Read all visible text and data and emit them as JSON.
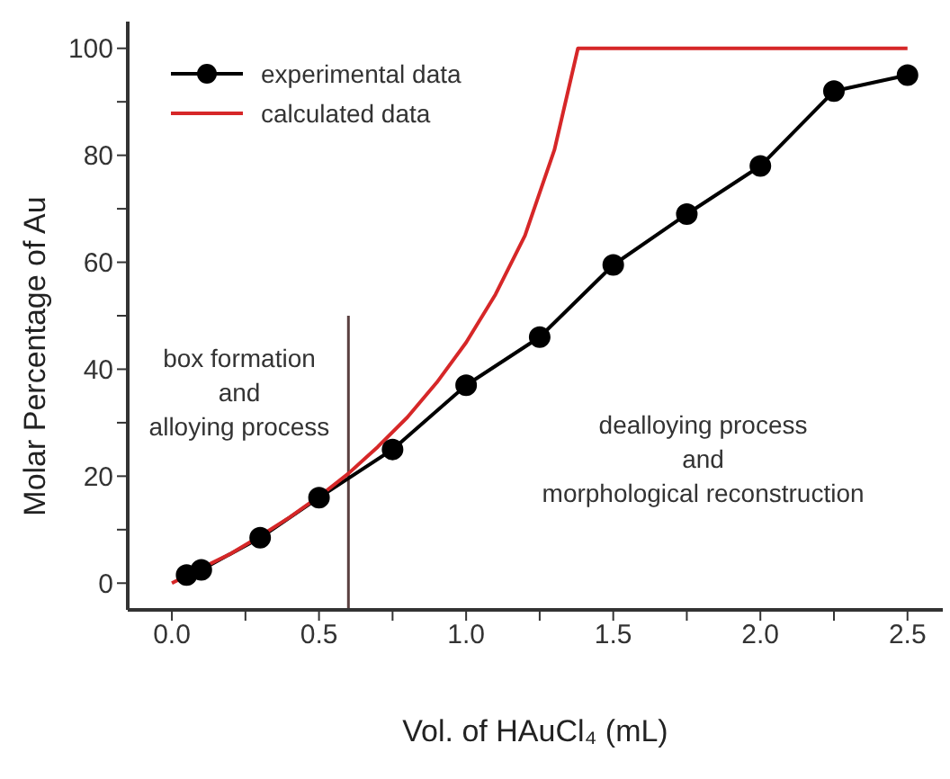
{
  "chart_data": {
    "type": "line",
    "xlabel": "Vol. of HAuCl₄  (mL)",
    "ylabel": "Molar Percentage of Au",
    "xlim": [
      -0.15,
      2.62
    ],
    "ylim": [
      -5,
      105
    ],
    "xticks": [
      {
        "value": 0,
        "label": "0.0"
      },
      {
        "value": 0.25,
        "label": null
      },
      0.5,
      {
        "value": 0.75,
        "label": null
      },
      {
        "value": 1,
        "label": "1.0"
      },
      {
        "value": 1.25,
        "label": null
      },
      1.5,
      {
        "value": 1.75,
        "label": null
      },
      {
        "value": 2,
        "label": "2.0"
      },
      {
        "value": 2.25,
        "label": null
      },
      2.5
    ],
    "yticks": [
      0,
      {
        "value": 10,
        "label": null
      },
      20,
      {
        "value": 30,
        "label": null
      },
      40,
      {
        "value": 50,
        "label": null
      },
      60,
      {
        "value": 70,
        "label": null
      },
      80,
      {
        "value": 90,
        "label": null
      },
      100
    ],
    "legend": "top left",
    "series": [
      {
        "name": "experimental data",
        "color": "#000000",
        "marker": "circle",
        "x": [
          0.05,
          0.1,
          0.3,
          0.5,
          0.75,
          1.0,
          1.25,
          1.5,
          1.75,
          2.0,
          2.25,
          2.5
        ],
        "values": [
          1.5,
          2.5,
          8.5,
          16,
          25,
          37,
          46,
          59.5,
          69,
          78,
          92,
          95
        ]
      },
      {
        "name": "calculated data",
        "color": "#d62728",
        "marker": "none",
        "x": [
          0,
          0.1,
          0.2,
          0.3,
          0.4,
          0.5,
          0.6,
          0.7,
          0.8,
          0.9,
          1.0,
          1.1,
          1.2,
          1.3,
          1.38,
          2.5
        ],
        "values": [
          0,
          2.8,
          5.5,
          8.8,
          12.3,
          16.2,
          20.5,
          25.5,
          31,
          37.5,
          45,
          54,
          65,
          81,
          100,
          100
        ]
      }
    ],
    "ref_lines": [
      {
        "axis": "x",
        "value": 0.6,
        "color": "#5a4040"
      }
    ],
    "annotations": [
      "box formation\nand\nalloying process",
      "dealloying process\nand\nmorphological reconstruction"
    ]
  }
}
